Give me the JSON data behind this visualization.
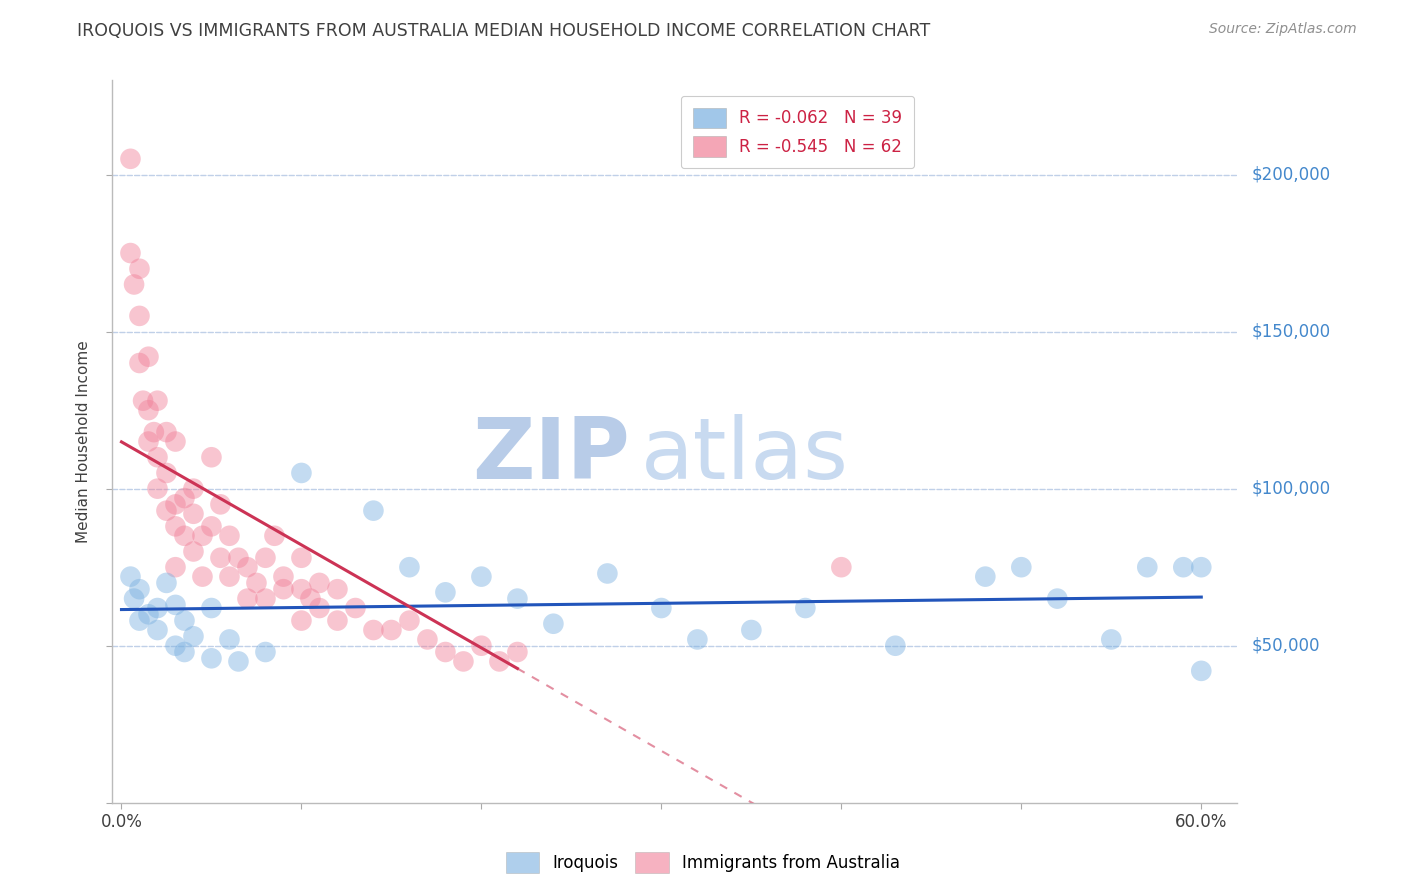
{
  "title": "IROQUOIS VS IMMIGRANTS FROM AUSTRALIA MEDIAN HOUSEHOLD INCOME CORRELATION CHART",
  "source_text": "Source: ZipAtlas.com",
  "ylabel": "Median Household Income",
  "xlim": [
    -0.005,
    0.62
  ],
  "ylim": [
    0,
    230000
  ],
  "legend_entries": [
    {
      "label": "R = -0.062   N = 39",
      "color": "#a8c4e8"
    },
    {
      "label": "R = -0.545   N = 62",
      "color": "#f0a0b8"
    }
  ],
  "series1_label": "Iroquois",
  "series2_label": "Immigrants from Australia",
  "series1_color": "#7ab0e0",
  "series2_color": "#f08098",
  "trend1_color": "#2255bb",
  "trend2_color": "#cc3355",
  "background_color": "#ffffff",
  "grid_color": "#c0d0e8",
  "watermark_text": "ZIPatlas",
  "watermark_color": "#ccdaf5",
  "title_color": "#404040",
  "axis_label_color": "#404040",
  "ytick_label_color": "#4488cc",
  "source_color": "#909090",
  "iroquois_x": [
    0.005,
    0.007,
    0.01,
    0.01,
    0.015,
    0.02,
    0.02,
    0.025,
    0.03,
    0.03,
    0.035,
    0.035,
    0.04,
    0.05,
    0.05,
    0.06,
    0.065,
    0.08,
    0.1,
    0.14,
    0.16,
    0.18,
    0.2,
    0.22,
    0.24,
    0.27,
    0.3,
    0.32,
    0.35,
    0.38,
    0.43,
    0.48,
    0.5,
    0.52,
    0.55,
    0.57,
    0.59,
    0.6,
    0.6
  ],
  "iroquois_y": [
    72000,
    65000,
    68000,
    58000,
    60000,
    62000,
    55000,
    70000,
    63000,
    50000,
    58000,
    48000,
    53000,
    62000,
    46000,
    52000,
    45000,
    48000,
    105000,
    93000,
    75000,
    67000,
    72000,
    65000,
    57000,
    73000,
    62000,
    52000,
    55000,
    62000,
    50000,
    72000,
    75000,
    65000,
    52000,
    75000,
    75000,
    75000,
    42000
  ],
  "australia_x": [
    0.005,
    0.005,
    0.007,
    0.01,
    0.01,
    0.01,
    0.012,
    0.015,
    0.015,
    0.015,
    0.018,
    0.02,
    0.02,
    0.02,
    0.025,
    0.025,
    0.025,
    0.03,
    0.03,
    0.03,
    0.03,
    0.035,
    0.035,
    0.04,
    0.04,
    0.04,
    0.045,
    0.045,
    0.05,
    0.05,
    0.055,
    0.055,
    0.06,
    0.06,
    0.065,
    0.07,
    0.07,
    0.075,
    0.08,
    0.08,
    0.085,
    0.09,
    0.09,
    0.1,
    0.1,
    0.1,
    0.105,
    0.11,
    0.11,
    0.12,
    0.12,
    0.13,
    0.14,
    0.15,
    0.16,
    0.17,
    0.18,
    0.19,
    0.2,
    0.21,
    0.22,
    0.4
  ],
  "australia_y": [
    205000,
    175000,
    165000,
    170000,
    155000,
    140000,
    128000,
    125000,
    115000,
    142000,
    118000,
    110000,
    100000,
    128000,
    105000,
    93000,
    118000,
    95000,
    88000,
    115000,
    75000,
    85000,
    97000,
    92000,
    80000,
    100000,
    85000,
    72000,
    88000,
    110000,
    95000,
    78000,
    85000,
    72000,
    78000,
    65000,
    75000,
    70000,
    65000,
    78000,
    85000,
    72000,
    68000,
    78000,
    68000,
    58000,
    65000,
    62000,
    70000,
    58000,
    68000,
    62000,
    55000,
    55000,
    58000,
    52000,
    48000,
    45000,
    50000,
    45000,
    48000,
    75000
  ]
}
